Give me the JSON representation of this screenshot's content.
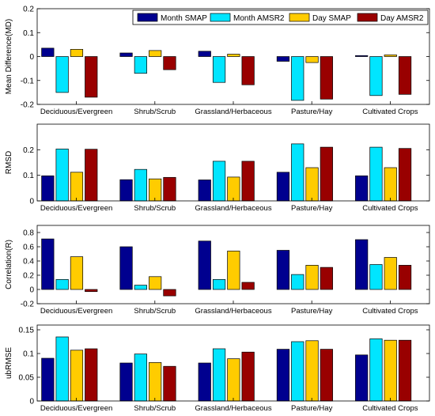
{
  "legend": {
    "position": "top-right",
    "entries": [
      {
        "label": "Month SMAP",
        "color": "#00008f"
      },
      {
        "label": "Month AMSR2",
        "color": "#00e5ff"
      },
      {
        "label": "Day SMAP",
        "color": "#ffcc00"
      },
      {
        "label": "Day AMSR2",
        "color": "#990000"
      }
    ]
  },
  "chart_data": [
    {
      "type": "bar",
      "ylabel": "Mean Difference(MD)",
      "ylim": [
        -0.2,
        0.2
      ],
      "yticks": [
        -0.2,
        -0.1,
        0,
        0.1,
        0.2
      ],
      "ytick_labels": [
        "-0.2",
        "-0.1",
        "0",
        "0.1",
        "0.2"
      ],
      "grid": false,
      "categories": [
        "Deciduous/Evergreen",
        "Shrub/Scrub",
        "Grassland/Herbaceous",
        "Pasture/Hay",
        "Cultivated Crops"
      ],
      "series": [
        {
          "name": "Month SMAP",
          "color": "#00008f",
          "values": [
            0.035,
            0.015,
            0.022,
            -0.02,
            0.004
          ]
        },
        {
          "name": "Month AMSR2",
          "color": "#00e5ff",
          "values": [
            -0.15,
            -0.07,
            -0.108,
            -0.183,
            -0.163
          ]
        },
        {
          "name": "Day SMAP",
          "color": "#ffcc00",
          "values": [
            0.03,
            0.025,
            0.01,
            -0.025,
            0.007
          ]
        },
        {
          "name": "Day AMSR2",
          "color": "#990000",
          "values": [
            -0.17,
            -0.055,
            -0.118,
            -0.178,
            -0.158
          ]
        }
      ]
    },
    {
      "type": "bar",
      "ylabel": "RMSD",
      "ylim": [
        0,
        0.3
      ],
      "yticks": [
        0,
        0.1,
        0.2
      ],
      "ytick_labels": [
        "0",
        "0.1",
        "0.2"
      ],
      "grid": false,
      "categories": [
        "Deciduous/Evergreen",
        "Shrub/Scrub",
        "Grassland/Herbaceous",
        "Pasture/Hay",
        "Cultivated Crops"
      ],
      "series": [
        {
          "name": "Month SMAP",
          "color": "#00008f",
          "values": [
            0.098,
            0.083,
            0.082,
            0.112,
            0.098
          ]
        },
        {
          "name": "Month AMSR2",
          "color": "#00e5ff",
          "values": [
            0.203,
            0.123,
            0.155,
            0.223,
            0.21
          ]
        },
        {
          "name": "Day SMAP",
          "color": "#ffcc00",
          "values": [
            0.112,
            0.086,
            0.093,
            0.13,
            0.13
          ]
        },
        {
          "name": "Day AMSR2",
          "color": "#990000",
          "values": [
            0.202,
            0.092,
            0.155,
            0.21,
            0.205
          ]
        }
      ]
    },
    {
      "type": "bar",
      "ylabel": "Correlation(R)",
      "ylim": [
        -0.2,
        0.9
      ],
      "yticks": [
        -0.2,
        0,
        0.2,
        0.4,
        0.6,
        0.8
      ],
      "ytick_labels": [
        "-0.2",
        "0",
        "0.2",
        "0.4",
        "0.6",
        "0.8"
      ],
      "grid": false,
      "categories": [
        "Deciduous/Evergreen",
        "Shrub/Scrub",
        "Grassland/Herbaceous",
        "Pasture/Hay",
        "Cultivated Crops"
      ],
      "series": [
        {
          "name": "Month SMAP",
          "color": "#00008f",
          "values": [
            0.71,
            0.6,
            0.68,
            0.55,
            0.7
          ]
        },
        {
          "name": "Month AMSR2",
          "color": "#00e5ff",
          "values": [
            0.14,
            0.06,
            0.14,
            0.21,
            0.35
          ]
        },
        {
          "name": "Day SMAP",
          "color": "#ffcc00",
          "values": [
            0.46,
            0.18,
            0.54,
            0.34,
            0.45
          ]
        },
        {
          "name": "Day AMSR2",
          "color": "#990000",
          "values": [
            -0.03,
            -0.09,
            0.1,
            0.31,
            0.34
          ]
        }
      ]
    },
    {
      "type": "bar",
      "ylabel": "ubRMSE",
      "ylim": [
        0,
        0.16
      ],
      "yticks": [
        0,
        0.05,
        0.1,
        0.15
      ],
      "ytick_labels": [
        "0",
        "0.05",
        "0.1",
        "0.15"
      ],
      "grid": false,
      "categories": [
        "Deciduous/Evergreen",
        "Shrub/Scrub",
        "Grassland/Herbaceous",
        "Pasture/Hay",
        "Cultivated Crops"
      ],
      "series": [
        {
          "name": "Month SMAP",
          "color": "#00008f",
          "values": [
            0.09,
            0.08,
            0.08,
            0.109,
            0.097
          ]
        },
        {
          "name": "Month AMSR2",
          "color": "#00e5ff",
          "values": [
            0.135,
            0.099,
            0.11,
            0.125,
            0.131
          ]
        },
        {
          "name": "Day SMAP",
          "color": "#ffcc00",
          "values": [
            0.107,
            0.081,
            0.089,
            0.127,
            0.128
          ]
        },
        {
          "name": "Day AMSR2",
          "color": "#990000",
          "values": [
            0.11,
            0.073,
            0.103,
            0.109,
            0.128
          ]
        }
      ]
    }
  ]
}
